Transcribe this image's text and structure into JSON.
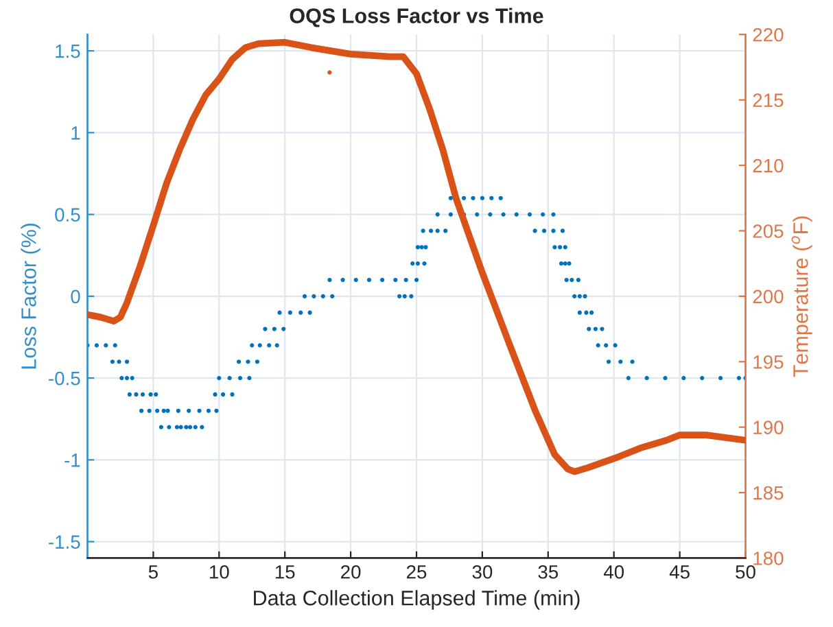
{
  "chart_data": {
    "type": "scatter",
    "title": "OQS Loss Factor vs Time",
    "xlabel": "Data Collection Elapsed Time (min)",
    "ylabel": "Loss Factor (%)",
    "y2label": "Temperature ($^{o}$F)",
    "xlim": [
      0,
      50
    ],
    "xticks": [
      5,
      10,
      15,
      20,
      25,
      30,
      35,
      40,
      45,
      50
    ],
    "ylim": [
      -1.6,
      1.6
    ],
    "yticks": [
      -1.5,
      -1,
      -0.5,
      0,
      0.5,
      1,
      1.5
    ],
    "y2lim": [
      180,
      220
    ],
    "y2ticks": [
      180,
      185,
      190,
      195,
      200,
      205,
      210,
      215,
      220
    ],
    "grid": true,
    "legend": false,
    "series": [
      {
        "color": "#0072bd",
        "marker": "circle",
        "x": [
          0,
          0.7,
          1.4,
          2.1,
          1.9,
          2.4,
          3.0,
          2.6,
          3.0,
          3.4,
          3.2,
          3.7,
          4.2,
          4.8,
          5.2,
          4.1,
          4.7,
          5.3,
          5.8,
          6.1,
          6.9,
          7.7,
          8.5,
          9.2,
          9.8,
          5.6,
          6.2,
          6.8,
          7.1,
          7.5,
          7.8,
          8.2,
          8.7,
          9.7,
          10.3,
          11.0,
          10.0,
          10.8,
          11.6,
          12.3,
          11.5,
          12.2,
          12.9,
          12.5,
          13.1,
          13.8,
          14.4,
          13.5,
          14.2,
          14.9,
          14.6,
          15.4,
          16.2,
          16.9,
          16.5,
          17.2,
          17.9,
          18.6,
          18.4,
          19.4,
          20.4,
          21.4,
          22.4,
          23.4,
          24.2,
          25.0,
          23.7,
          24.1,
          24.6,
          24.7,
          25.1,
          25.6,
          25.1,
          25.4,
          25.7,
          25.5,
          26.1,
          26.6,
          27.2,
          26.6,
          27.6,
          28.6,
          29.6,
          30.6,
          31.6,
          32.6,
          33.6,
          34.6,
          35.4,
          27.6,
          28.6,
          29.3,
          30.0,
          30.7,
          31.4,
          34.0,
          34.7,
          35.4,
          36.1,
          35.5,
          35.9,
          36.3,
          36.0,
          36.3,
          36.6,
          36.4,
          36.8,
          37.3,
          37.0,
          37.4,
          37.8,
          37.4,
          37.9,
          38.3,
          38.1,
          38.6,
          39.1,
          38.8,
          39.4,
          40.1,
          39.6,
          40.5,
          41.4,
          41.1,
          42.5,
          43.9,
          45.3,
          46.7,
          48.1,
          49.5,
          50
        ],
        "values": [
          -0.3,
          -0.3,
          -0.3,
          -0.3,
          -0.4,
          -0.4,
          -0.4,
          -0.5,
          -0.5,
          -0.5,
          -0.6,
          -0.6,
          -0.6,
          -0.6,
          -0.6,
          -0.7,
          -0.7,
          -0.7,
          -0.7,
          -0.7,
          -0.7,
          -0.7,
          -0.7,
          -0.7,
          -0.7,
          -0.8,
          -0.8,
          -0.8,
          -0.8,
          -0.8,
          -0.8,
          -0.8,
          -0.8,
          -0.6,
          -0.6,
          -0.6,
          -0.5,
          -0.5,
          -0.5,
          -0.5,
          -0.4,
          -0.4,
          -0.4,
          -0.3,
          -0.3,
          -0.3,
          -0.3,
          -0.2,
          -0.2,
          -0.2,
          -0.1,
          -0.1,
          -0.1,
          -0.1,
          0.0,
          0.0,
          0.0,
          0.0,
          0.1,
          0.1,
          0.1,
          0.1,
          0.1,
          0.1,
          0.1,
          0.1,
          0.0,
          0.0,
          0.0,
          0.2,
          0.2,
          0.2,
          0.3,
          0.3,
          0.3,
          0.4,
          0.4,
          0.4,
          0.4,
          0.5,
          0.5,
          0.5,
          0.5,
          0.5,
          0.5,
          0.5,
          0.5,
          0.5,
          0.5,
          0.6,
          0.6,
          0.6,
          0.6,
          0.6,
          0.6,
          0.4,
          0.4,
          0.4,
          0.4,
          0.3,
          0.3,
          0.3,
          0.2,
          0.2,
          0.2,
          0.1,
          0.1,
          0.1,
          0.0,
          0.0,
          0.0,
          -0.1,
          -0.1,
          -0.1,
          -0.2,
          -0.2,
          -0.2,
          -0.3,
          -0.3,
          -0.3,
          -0.4,
          -0.4,
          -0.4,
          -0.5,
          -0.5,
          -0.5,
          -0.5,
          -0.5,
          -0.5,
          -0.5,
          -0.5
        ]
      },
      {
        "type": "line",
        "axis": "y2",
        "color": "#d95319",
        "marker": "none",
        "line_style": "solid",
        "x": [
          0,
          1,
          2,
          2.5,
          3,
          4,
          5,
          6,
          7,
          8,
          9,
          10,
          11,
          12,
          13,
          15,
          17,
          20,
          23,
          24,
          25,
          26,
          27,
          28,
          30,
          32,
          34,
          35.5,
          36.5,
          37,
          38,
          40,
          42,
          44,
          45,
          47,
          50
        ],
        "values": [
          198.6,
          198.4,
          198.1,
          198.4,
          199.5,
          202.3,
          205.4,
          208.6,
          211.2,
          213.5,
          215.4,
          216.6,
          218.1,
          219.0,
          219.3,
          219.4,
          219.0,
          218.5,
          218.3,
          218.3,
          217.0,
          214.3,
          211.2,
          207.5,
          201.8,
          196.5,
          191.3,
          187.9,
          186.8,
          186.6,
          186.9,
          187.6,
          188.4,
          189.0,
          189.4,
          189.4,
          189.0
        ]
      },
      {
        "type": "scatter",
        "axis": "y2",
        "color": "#d95319",
        "marker": "circle",
        "x": [
          18.4
        ],
        "values": [
          217.1
        ]
      }
    ]
  }
}
